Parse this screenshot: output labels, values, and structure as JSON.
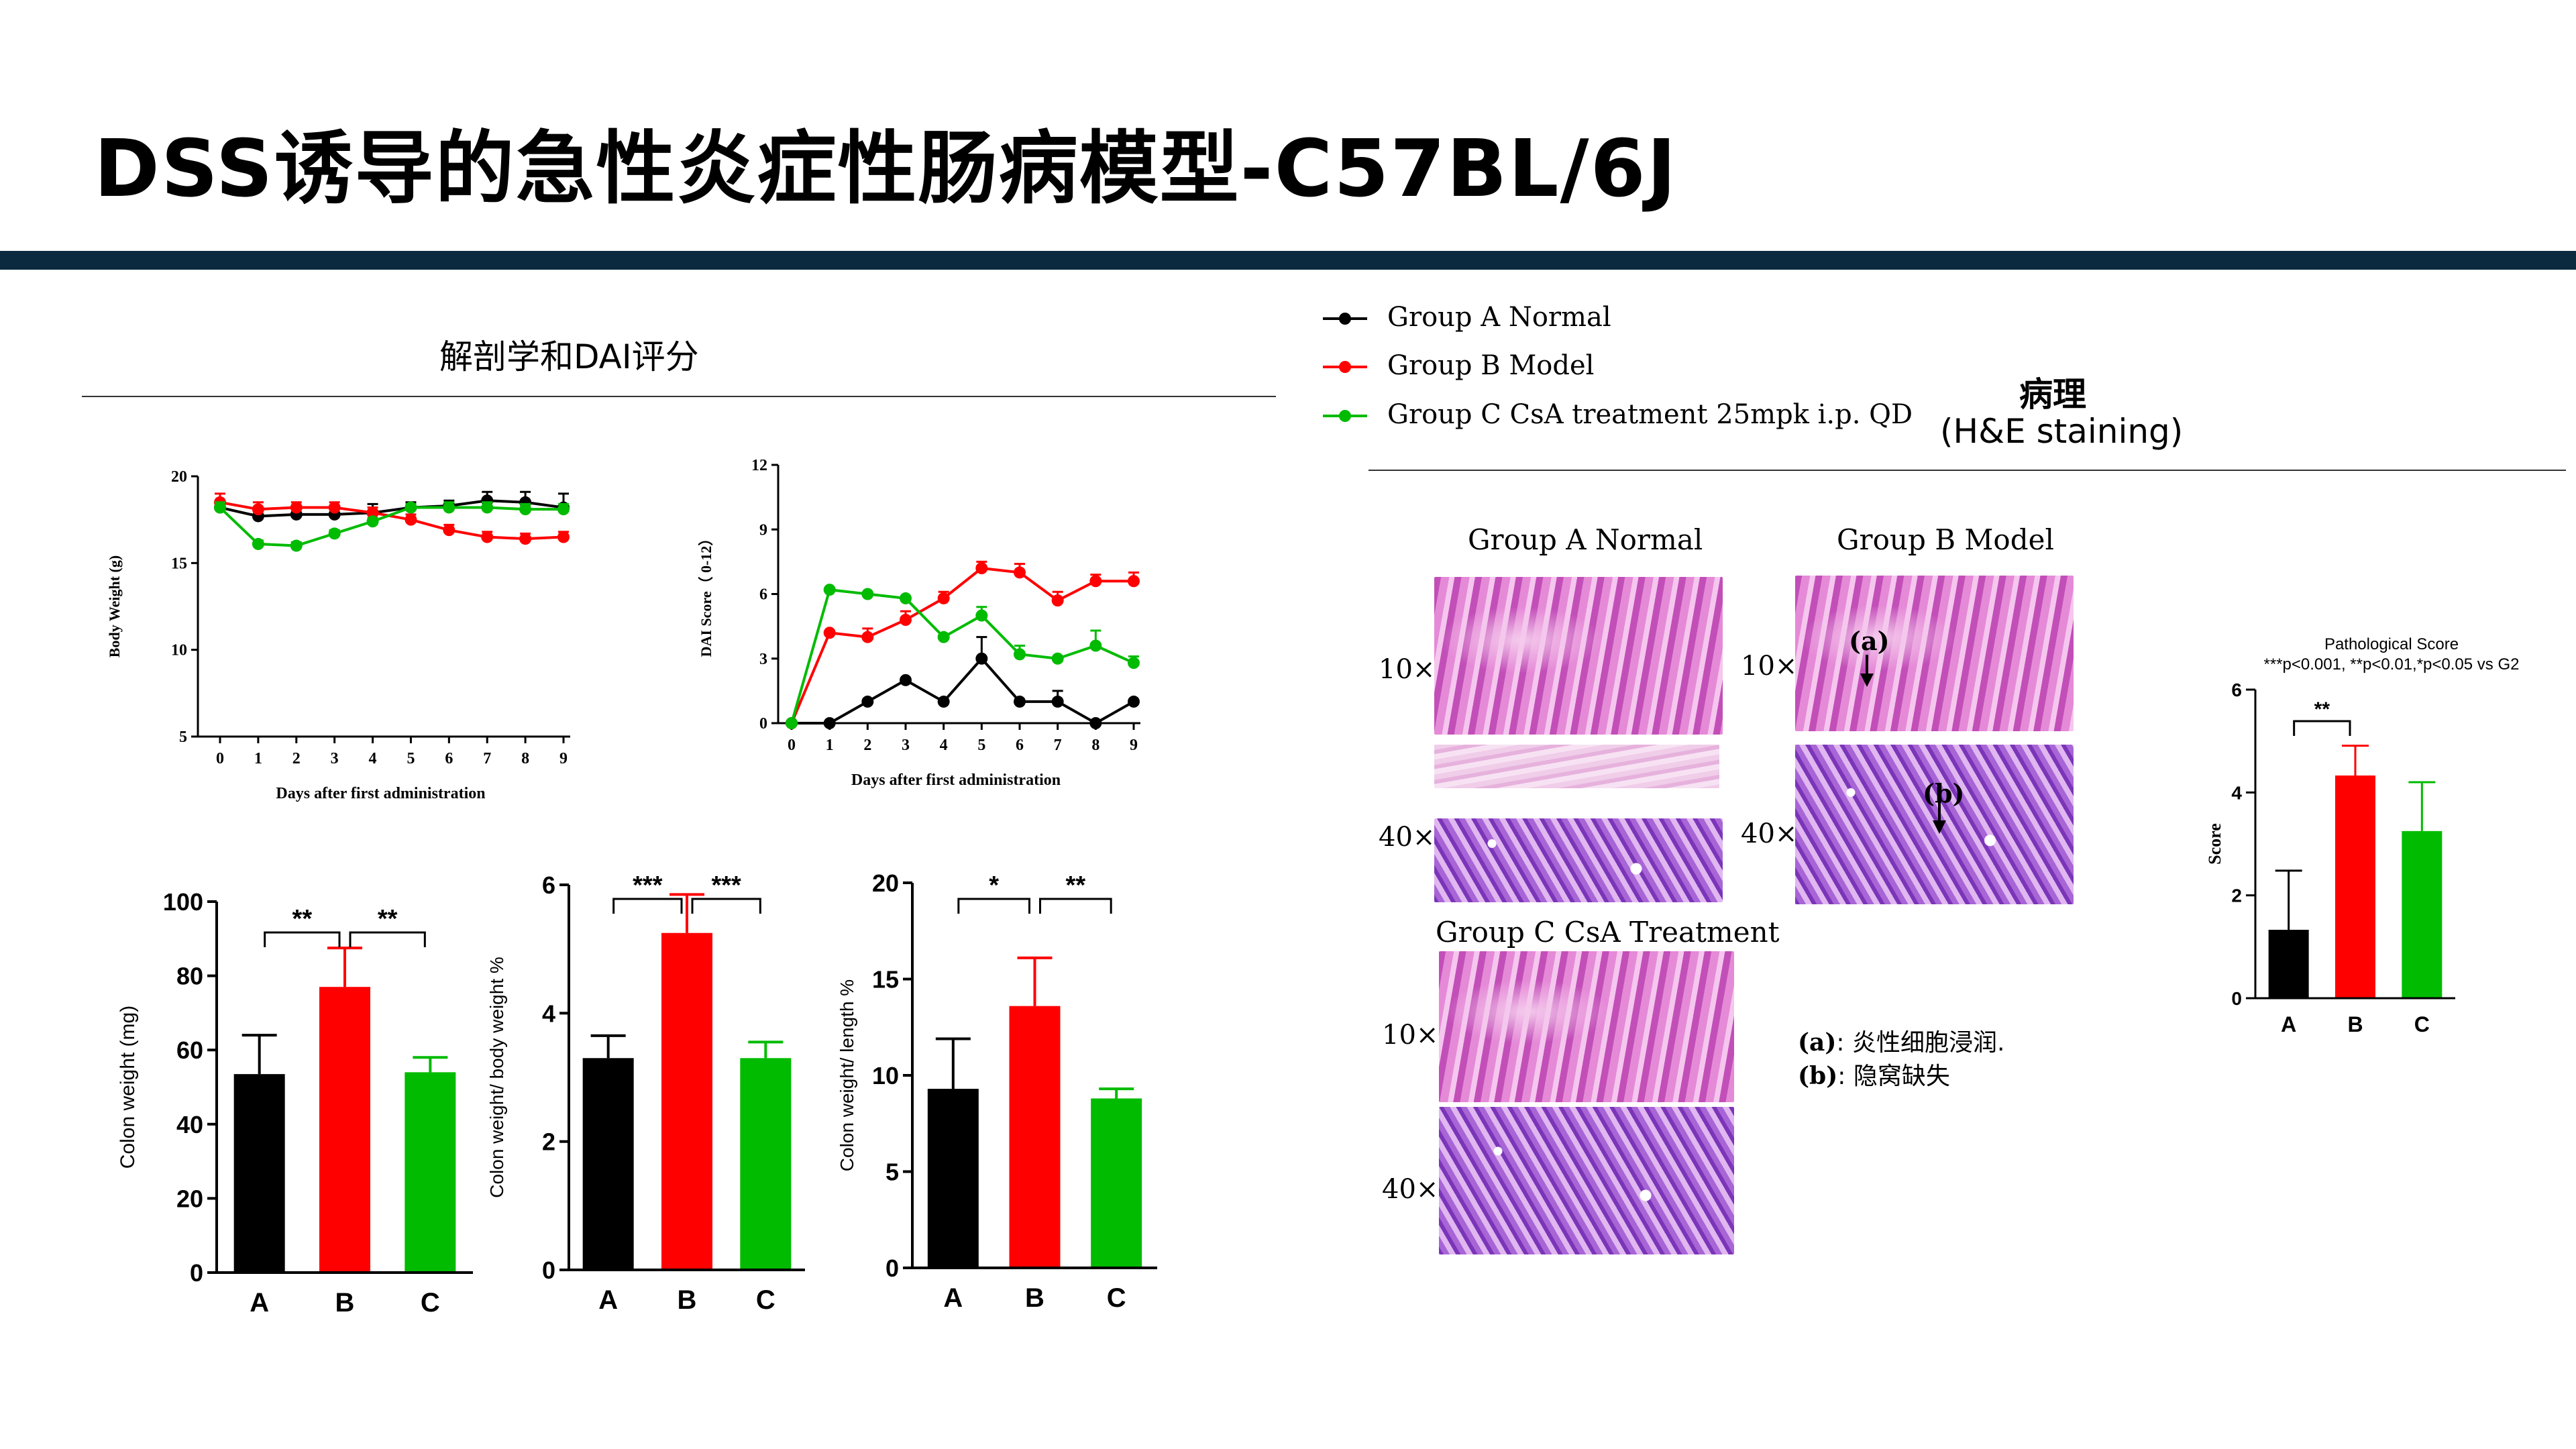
{
  "slide_title": "DSS诱导的急性炎症性肠病模型-C57BL/6J",
  "left_section_title": "解剖学和DAI评分",
  "right_section_title": "病理",
  "right_section_subtitle": "(H&E staining)",
  "legend": [
    {
      "label": "Group A Normal",
      "color": "#000000"
    },
    {
      "label": "Group B Model",
      "color": "#ff0000"
    },
    {
      "label": "Group C CsA treatment 25mpk i.p. QD",
      "color": "#00bb00"
    }
  ],
  "colors": {
    "group_a": "#000000",
    "group_b": "#ff0000",
    "group_c": "#00bb00",
    "title_bar": "#0b2a40"
  },
  "pathology": {
    "group_a_label": "Group A Normal",
    "group_b_label": "Group B Model",
    "group_c_label": "Group C CsA Treatment",
    "mag_10x": "10×",
    "mag_40x": "40×",
    "marker_a": "(a)",
    "marker_b": "(b)",
    "note_a_key": "(a)",
    "note_a_text": ": 炎性细胞浸润.",
    "note_b_key": "(b)",
    "note_b_text": ": 隐窝缺失"
  },
  "chart_data": [
    {
      "type": "line",
      "ylabel": "Body Weight (g)",
      "xlabel": "Days after first administration",
      "x": [
        0,
        1,
        2,
        3,
        4,
        5,
        6,
        7,
        8,
        9
      ],
      "ylim": [
        5,
        20
      ],
      "yticks": [
        "5",
        "10",
        "15",
        "20"
      ],
      "xticks": [
        "0",
        "1",
        "2",
        "3",
        "4",
        "5",
        "6",
        "7",
        "8",
        "9"
      ],
      "series": [
        {
          "name": "Group A Normal",
          "color": "#000000",
          "values": [
            18.2,
            17.7,
            17.8,
            17.8,
            17.9,
            18.2,
            18.3,
            18.6,
            18.5,
            18.2
          ],
          "err": [
            0.4,
            0.3,
            0.3,
            0.3,
            0.5,
            0.3,
            0.3,
            0.5,
            0.6,
            0.8
          ]
        },
        {
          "name": "Group B Model",
          "color": "#ff0000",
          "values": [
            18.5,
            18.1,
            18.2,
            18.2,
            17.9,
            17.5,
            16.9,
            16.5,
            16.4,
            16.5
          ],
          "err": [
            0.5,
            0.4,
            0.3,
            0.3,
            0.3,
            0.3,
            0.3,
            0.3,
            0.3,
            0.3
          ]
        },
        {
          "name": "Group C CsA treatment 25mpk i.p. QD",
          "color": "#00bb00",
          "values": [
            18.2,
            16.1,
            16.0,
            16.7,
            17.4,
            18.2,
            18.2,
            18.2,
            18.1,
            18.1
          ],
          "err": [
            0.3,
            0.2,
            0.2,
            0.2,
            0.2,
            0.2,
            0.3,
            0.3,
            0.3,
            0.3
          ]
        }
      ]
    },
    {
      "type": "line",
      "ylabel": "DAI Score（ 0-12）",
      "xlabel": "Days after first administration",
      "x": [
        0,
        1,
        2,
        3,
        4,
        5,
        6,
        7,
        8,
        9
      ],
      "ylim": [
        0,
        12
      ],
      "yticks": [
        "0",
        "3",
        "6",
        "9",
        "12"
      ],
      "xticks": [
        "0",
        "1",
        "2",
        "3",
        "4",
        "5",
        "6",
        "7",
        "8",
        "9"
      ],
      "series": [
        {
          "name": "Group A Normal",
          "color": "#000000",
          "values": [
            0,
            0,
            1,
            2,
            1,
            3,
            1,
            1,
            0,
            1
          ],
          "err": [
            0,
            0,
            0,
            0,
            0,
            1,
            0,
            0.5,
            0,
            0
          ]
        },
        {
          "name": "Group B Model",
          "color": "#ff0000",
          "values": [
            0,
            4.2,
            4.0,
            4.8,
            5.8,
            7.2,
            7.0,
            5.7,
            6.6,
            6.6
          ],
          "err": [
            0,
            0,
            0.4,
            0.4,
            0.3,
            0.3,
            0.4,
            0.4,
            0.3,
            0.4
          ]
        },
        {
          "name": "Group C CsA treatment 25mpk i.p. QD",
          "color": "#00bb00",
          "values": [
            0,
            6.2,
            6.0,
            5.8,
            4.0,
            5.0,
            3.2,
            3.0,
            3.6,
            2.8
          ],
          "err": [
            0,
            0,
            0,
            0,
            0,
            0.4,
            0.4,
            0,
            0.7,
            0.3
          ]
        }
      ]
    },
    {
      "type": "bar",
      "ylabel": "Colon weight (mg)",
      "categories": [
        "A",
        "B",
        "C"
      ],
      "values": [
        53.5,
        77,
        54
      ],
      "err": [
        10.5,
        10.5,
        4
      ],
      "ylim": [
        0,
        100
      ],
      "yticks": [
        "0",
        "20",
        "40",
        "60",
        "80",
        "100"
      ],
      "significance": [
        {
          "from": 0,
          "to": 1,
          "label": "**"
        },
        {
          "from": 1,
          "to": 2,
          "label": "**"
        }
      ]
    },
    {
      "type": "bar",
      "ylabel": "Colon weight/ body weight %",
      "categories": [
        "A",
        "B",
        "C"
      ],
      "values": [
        3.3,
        5.25,
        3.3
      ],
      "err": [
        0.35,
        0.6,
        0.25
      ],
      "ylim": [
        0,
        6
      ],
      "yticks": [
        "0",
        "2",
        "4",
        "6"
      ],
      "significance": [
        {
          "from": 0,
          "to": 1,
          "label": "***"
        },
        {
          "from": 1,
          "to": 2,
          "label": "***"
        }
      ]
    },
    {
      "type": "bar",
      "ylabel": "Colon weight/ length %",
      "categories": [
        "A",
        "B",
        "C"
      ],
      "values": [
        9.3,
        13.6,
        8.8
      ],
      "err": [
        2.6,
        2.5,
        0.5
      ],
      "ylim": [
        0,
        20
      ],
      "yticks": [
        "0",
        "5",
        "10",
        "15",
        "20"
      ],
      "significance": [
        {
          "from": 0,
          "to": 1,
          "label": "*"
        },
        {
          "from": 1,
          "to": 2,
          "label": "**"
        }
      ]
    },
    {
      "type": "bar",
      "title": "Pathological Score",
      "subtitle": "***p<0.001, **p<0.01,*p<0.05 vs G2",
      "ylabel": "Score",
      "categories": [
        "A",
        "B",
        "C"
      ],
      "values": [
        1.33,
        4.33,
        3.25
      ],
      "err": [
        1.15,
        0.58,
        0.95
      ],
      "ylim": [
        0,
        6
      ],
      "yticks": [
        "0",
        "2",
        "4",
        "6"
      ],
      "significance": [
        {
          "from": 0,
          "to": 1,
          "label": "**"
        }
      ]
    }
  ]
}
